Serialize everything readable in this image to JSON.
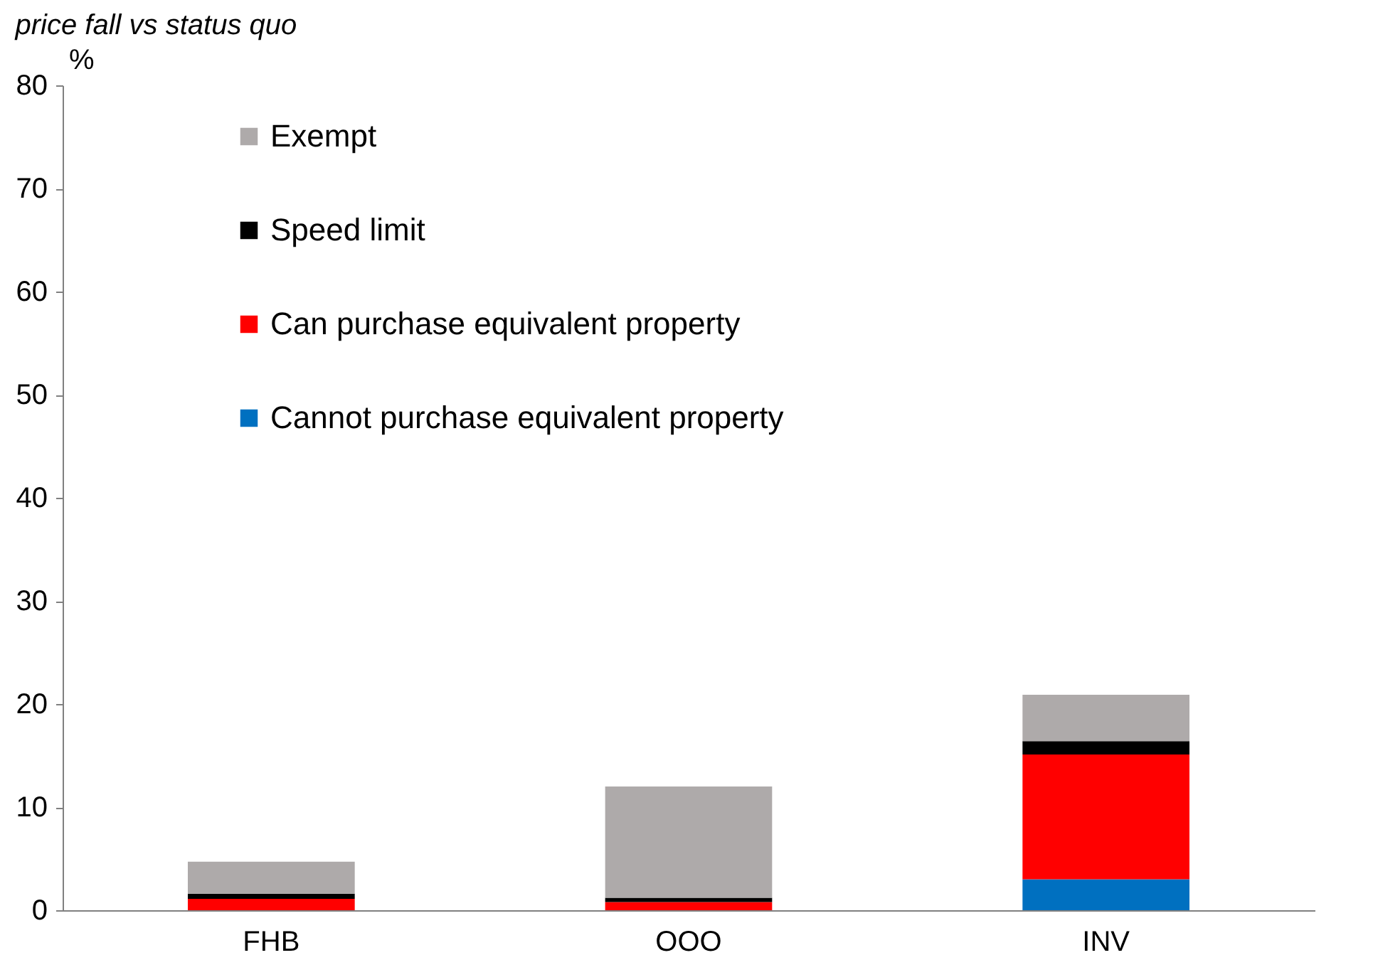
{
  "chart_data": {
    "type": "bar",
    "title": "price fall vs status quo",
    "ylabel": "%",
    "categories": [
      "FHB",
      "OOO",
      "INV"
    ],
    "stacked": true,
    "series": [
      {
        "name": "Cannot purchase equivalent property",
        "color": "#0070c0",
        "values": [
          0,
          0,
          3.0
        ]
      },
      {
        "name": "Can purchase equivalent property",
        "color": "#ff0000",
        "values": [
          1.1,
          0.8,
          12.1
        ]
      },
      {
        "name": "Speed limit",
        "color": "#000000",
        "values": [
          0.5,
          0.4,
          1.3
        ]
      },
      {
        "name": "Exempt",
        "color": "#aeaaaa",
        "values": [
          3.1,
          10.8,
          4.5
        ]
      }
    ],
    "ylim": [
      0,
      80
    ],
    "yticks": [
      0,
      10,
      20,
      30,
      40,
      50,
      60,
      70,
      80
    ],
    "grid": false,
    "legend": "top left"
  }
}
